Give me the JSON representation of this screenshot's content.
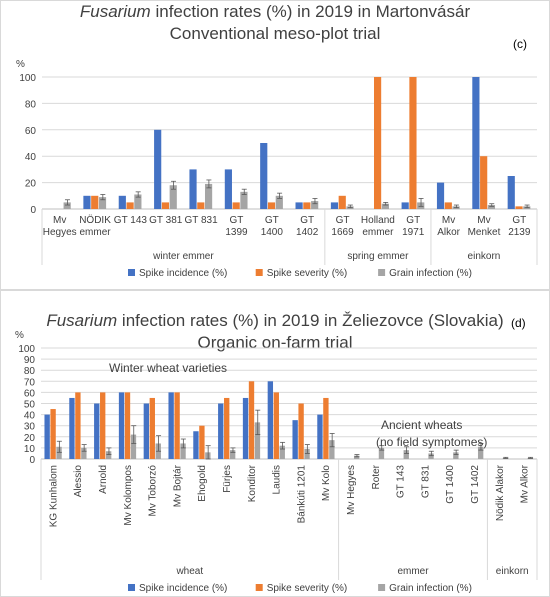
{
  "colors": {
    "spike_incidence": "#4472C4",
    "spike_severity": "#ED7D31",
    "grain_infection": "#A5A5A5",
    "grid": "#D9D9D9",
    "text": "#404040"
  },
  "chart_data": [
    {
      "type": "bar",
      "title_italic": "Fusarium",
      "title_rest": " infection rates (%) in 2019 in Martonvásár",
      "subtitle": "Conventional meso-plot trial",
      "tag": "(c)",
      "ylabel": "%",
      "ylim": [
        0,
        100
      ],
      "yticks": [
        0,
        20,
        40,
        60,
        80,
        100
      ],
      "legend_position": "bottom",
      "grid": true,
      "categories": [
        [
          "Mv",
          "Hegyes"
        ],
        [
          "NÖDIK",
          "emmer"
        ],
        [
          "GT 143"
        ],
        [
          "GT 381"
        ],
        [
          "GT 831"
        ],
        [
          "GT",
          "1399"
        ],
        [
          "GT",
          "1400"
        ],
        [
          "GT",
          "1402"
        ],
        [
          "GT",
          "1669"
        ],
        [
          "Holland",
          "emmer"
        ],
        [
          "GT",
          "1971"
        ],
        [
          "Mv",
          "Alkor"
        ],
        [
          "Mv",
          "Menket"
        ],
        [
          "GT",
          "2139"
        ]
      ],
      "groups": [
        {
          "name": "winter emmer",
          "start": 0,
          "end": 7
        },
        {
          "name": "spring emmer",
          "start": 8,
          "end": 10
        },
        {
          "name": "einkorn",
          "start": 11,
          "end": 13
        }
      ],
      "series": [
        {
          "name": "Spike incidence (%)",
          "color_key": "spike_incidence",
          "values": [
            0,
            10,
            10,
            60,
            30,
            30,
            50,
            5,
            5,
            0,
            5,
            20,
            100,
            25
          ]
        },
        {
          "name": "Spike severity (%)",
          "color_key": "spike_severity",
          "values": [
            0,
            10,
            5,
            5,
            5,
            5,
            5,
            5,
            10,
            100,
            100,
            5,
            40,
            2
          ]
        },
        {
          "name": "Grain infection (%)",
          "color_key": "grain_infection",
          "values": [
            5,
            9,
            11,
            18,
            19,
            13,
            10,
            6,
            2,
            4,
            5,
            2,
            3,
            2
          ],
          "errors": [
            2,
            2,
            2,
            3,
            3,
            2,
            2,
            2,
            1,
            1,
            3,
            1,
            1,
            1
          ]
        }
      ]
    },
    {
      "type": "bar",
      "title_italic": "Fusarium",
      "title_rest": " infection rates (%) in 2019 in Želiezovce (Slovakia)",
      "subtitle": "Organic on-farm trial",
      "tag": "(d)",
      "ylabel": "%",
      "ylim": [
        0,
        100
      ],
      "yticks": [
        0,
        10,
        20,
        30,
        40,
        50,
        60,
        70,
        80,
        90,
        100
      ],
      "legend_position": "bottom",
      "grid": true,
      "annotations": [
        "Winter wheat varieties",
        "Ancient wheats",
        "(no field symptomes)"
      ],
      "categories": [
        "KG Kunhalom",
        "Alessio",
        "Arnold",
        "Mv Kolompos",
        "Mv Toborzó",
        "Mv Bojtár",
        "Ehogold",
        "Fürjes",
        "Konditor",
        "Laudis",
        "Bánkúti 1201",
        "Mv Kolo",
        "Mv Hegyes",
        "Roter",
        "GT 143",
        "GT 831",
        "GT 1400",
        "GT 1402",
        "Nödik Alakor",
        "Mv Alkor"
      ],
      "groups": [
        {
          "name": "wheat",
          "start": 0,
          "end": 11
        },
        {
          "name": "emmer",
          "start": 12,
          "end": 17
        },
        {
          "name": "einkorn",
          "start": 18,
          "end": 19
        }
      ],
      "series": [
        {
          "name": "Spike incidence (%)",
          "color_key": "spike_incidence",
          "values": [
            40,
            55,
            50,
            60,
            50,
            60,
            25,
            50,
            55,
            70,
            35,
            40,
            0,
            0,
            0,
            0,
            0,
            0,
            0,
            0
          ]
        },
        {
          "name": "Spike severity (%)",
          "color_key": "spike_severity",
          "values": [
            45,
            60,
            60,
            60,
            55,
            60,
            30,
            55,
            70,
            60,
            50,
            55,
            0,
            0,
            0,
            0,
            0,
            0,
            0,
            0
          ]
        },
        {
          "name": "Grain infection (%)",
          "color_key": "grain_infection",
          "values": [
            11,
            10,
            7,
            22,
            14,
            14,
            6,
            8,
            33,
            12,
            9,
            17,
            3,
            10,
            8,
            5,
            6,
            11,
            1,
            1
          ],
          "errors": [
            5,
            3,
            3,
            8,
            7,
            4,
            6,
            2,
            11,
            3,
            4,
            6,
            1,
            2,
            3,
            2,
            2,
            3,
            0.5,
            0.5
          ]
        }
      ]
    }
  ]
}
